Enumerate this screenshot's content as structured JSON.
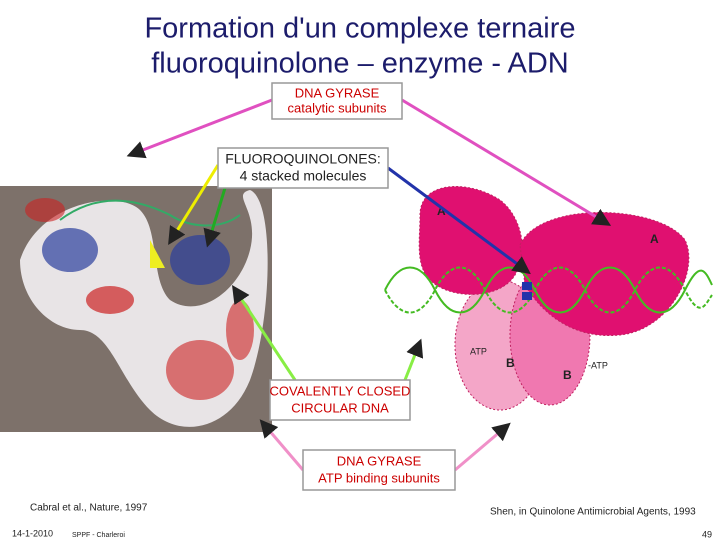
{
  "header": {
    "title_line1": "Formation d'un complexe ternaire",
    "title_line2": "fluoroquinolone – enzyme - ADN"
  },
  "callouts": [
    {
      "line1": "DNA GYRASE",
      "line2": "catalytic subunits"
    },
    {
      "line1": "FLUOROQUINOLONES:",
      "line2": "4 stacked molecules"
    },
    {
      "line1": "COVALENTLY CLOSED",
      "line2": "CIRCULAR DNA"
    },
    {
      "line1": "DNA GYRASE",
      "line2": "ATP binding subunits"
    }
  ],
  "diagram_labels": {
    "a_left": "A",
    "a_right": "A",
    "atp_left": "ATP",
    "b_left": "B",
    "b_right": "B",
    "atp_right": "-ATP"
  },
  "citations": {
    "left": "Cabral et al., Nature, 1997",
    "right": "Shen,  in Quinolone Antimicrobial Agents, 1993"
  },
  "footer": {
    "date": "14-1-2010",
    "org": "SPPF - Charleroi",
    "page": "49"
  }
}
